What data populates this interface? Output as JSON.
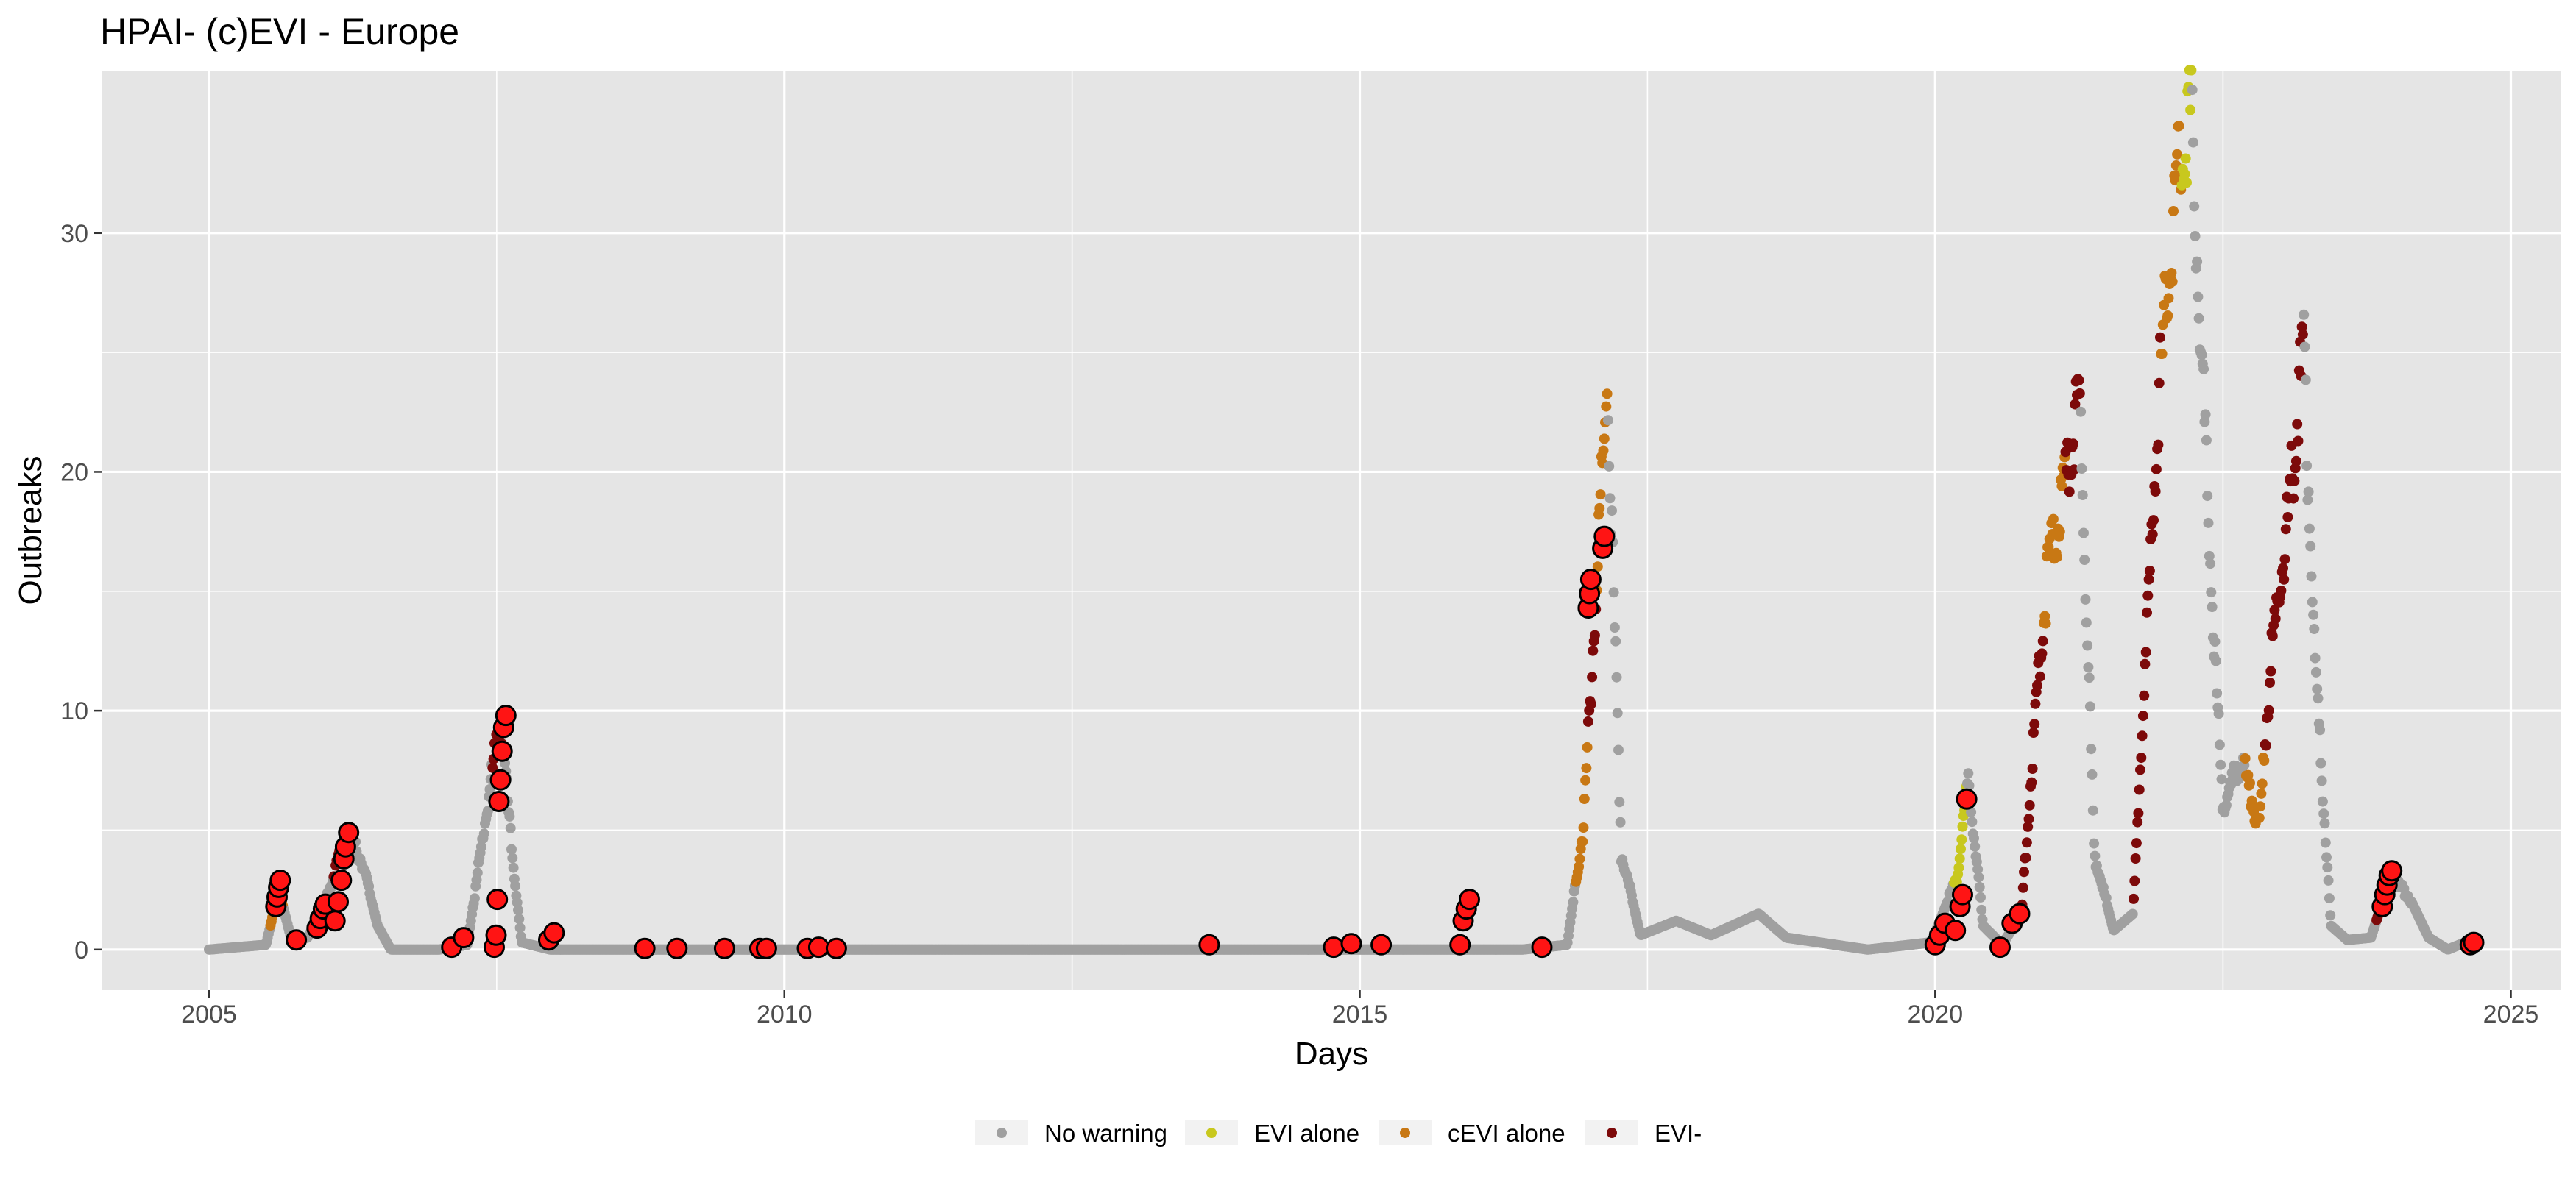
{
  "chart_data": {
    "type": "scatter",
    "title": "HPAI- (c)EVI - Europe",
    "xlabel": "Days",
    "ylabel": "Outbreaks",
    "x_ticks": [
      "2005",
      "2010",
      "2015",
      "2020",
      "2025"
    ],
    "y_ticks": [
      "0",
      "10",
      "20",
      "30"
    ],
    "xlim": [
      "2004-01-26",
      "2025-06-10"
    ],
    "ylim": [
      -1.7,
      36.8
    ],
    "grid": true,
    "legend_position": "bottom",
    "colors": {
      "panel": "#e5e5e5",
      "grid": "#ffffff",
      "no_warning": "#a0a0a0",
      "evi_alone": "#c8c81e",
      "cevi_alone": "#c87814",
      "evi_both": "#7d0a0a",
      "outbreak_marker": "#ff1414"
    },
    "legend": [
      {
        "key": "no_warning",
        "label": "No warning"
      },
      {
        "key": "evi_alone",
        "label": "EVI alone"
      },
      {
        "key": "cevi_alone",
        "label": "cEVI alone"
      },
      {
        "key": "evi_both",
        "label": "EVI-"
      }
    ],
    "trend": [
      [
        "2005-01-01",
        0
      ],
      [
        "2005-07-01",
        0.2
      ],
      [
        "2005-08-10",
        2.5
      ],
      [
        "2005-09-20",
        0.4
      ],
      [
        "2005-11-10",
        0.5
      ],
      [
        "2006-01-01",
        1.8
      ],
      [
        "2006-03-15",
        4.9
      ],
      [
        "2006-05-01",
        3.7
      ],
      [
        "2006-06-20",
        1.0
      ],
      [
        "2006-08-01",
        0
      ],
      [
        "2007-01-01",
        0
      ],
      [
        "2007-04-01",
        0.2
      ],
      [
        "2007-07-15",
        9.8
      ],
      [
        "2007-08-20",
        4.1
      ],
      [
        "2007-09-20",
        0.3
      ],
      [
        "2007-12-20",
        0
      ],
      [
        "2016-06-01",
        0
      ],
      [
        "2016-10-20",
        0.2
      ],
      [
        "2016-12-10",
        5.0
      ],
      [
        "2017-01-20",
        15.0
      ],
      [
        "2017-02-25",
        23.8
      ],
      [
        "2017-04-10",
        4.0
      ],
      [
        "2017-06-10",
        0.6
      ],
      [
        "2017-10-01",
        1.2
      ],
      [
        "2018-01-20",
        0.6
      ],
      [
        "2018-06-20",
        1.5
      ],
      [
        "2018-09-15",
        0.5
      ],
      [
        "2019-06-01",
        0
      ],
      [
        "2019-12-20",
        0.3
      ],
      [
        "2020-03-10",
        3.0
      ],
      [
        "2020-04-15",
        7.2
      ],
      [
        "2020-06-01",
        1.0
      ],
      [
        "2020-08-01",
        0.2
      ],
      [
        "2020-10-01",
        1.5
      ],
      [
        "2020-11-15",
        10.0
      ],
      [
        "2020-12-25",
        16.0
      ],
      [
        "2021-02-10",
        19.0
      ],
      [
        "2021-04-05",
        23.0
      ],
      [
        "2021-05-20",
        4.0
      ],
      [
        "2021-07-20",
        0.8
      ],
      [
        "2021-09-20",
        1.5
      ],
      [
        "2021-12-10",
        23.0
      ],
      [
        "2022-02-10",
        33.0
      ],
      [
        "2022-03-25",
        35.0
      ],
      [
        "2022-05-20",
        17.0
      ],
      [
        "2022-07-01",
        6.0
      ],
      [
        "2022-09-01",
        8.0
      ],
      [
        "2022-10-25",
        5.0
      ],
      [
        "2022-12-01",
        12.0
      ],
      [
        "2023-02-01",
        19.0
      ],
      [
        "2023-03-15",
        25.2
      ],
      [
        "2023-04-20",
        12.0
      ],
      [
        "2023-06-10",
        1.0
      ],
      [
        "2023-08-01",
        0.4
      ],
      [
        "2023-10-15",
        0.5
      ],
      [
        "2023-12-15",
        3.0
      ],
      [
        "2024-02-10",
        2.3
      ],
      [
        "2024-04-15",
        0.5
      ],
      [
        "2024-06-15",
        0
      ],
      [
        "2024-09-15",
        0.5
      ]
    ],
    "warning_bands": [
      {
        "from": "2005-07-15",
        "to": "2005-08-25",
        "cat": "cevi_alone"
      },
      {
        "from": "2006-02-01",
        "to": "2006-03-20",
        "cat": "evi_both"
      },
      {
        "from": "2007-06-20",
        "to": "2007-07-20",
        "cat": "evi_both"
      },
      {
        "from": "2016-11-15",
        "to": "2016-12-25",
        "cat": "cevi_alone"
      },
      {
        "from": "2016-12-26",
        "to": "2017-01-20",
        "cat": "evi_both"
      },
      {
        "from": "2017-01-21",
        "to": "2017-02-25",
        "cat": "cevi_alone"
      },
      {
        "from": "2020-03-01",
        "to": "2020-04-10",
        "cat": "evi_alone"
      },
      {
        "from": "2020-09-20",
        "to": "2020-12-10",
        "cat": "evi_both"
      },
      {
        "from": "2020-12-11",
        "to": "2021-02-15",
        "cat": "cevi_alone"
      },
      {
        "from": "2021-02-16",
        "to": "2021-04-05",
        "cat": "evi_both"
      },
      {
        "from": "2021-09-20",
        "to": "2021-12-15",
        "cat": "evi_both"
      },
      {
        "from": "2021-12-16",
        "to": "2022-02-20",
        "cat": "cevi_alone"
      },
      {
        "from": "2022-02-21",
        "to": "2022-03-25",
        "cat": "evi_alone"
      },
      {
        "from": "2022-09-10",
        "to": "2022-11-10",
        "cat": "cevi_alone"
      },
      {
        "from": "2022-11-11",
        "to": "2023-03-15",
        "cat": "evi_both"
      },
      {
        "from": "2023-11-01",
        "to": "2023-12-15",
        "cat": "evi_both"
      }
    ],
    "outbreak_points": [
      [
        "2005-08-01",
        1.8
      ],
      [
        "2005-08-05",
        2.2
      ],
      [
        "2005-08-10",
        2.6
      ],
      [
        "2005-08-15",
        2.9
      ],
      [
        "2005-10-05",
        0.4
      ],
      [
        "2005-12-10",
        0.9
      ],
      [
        "2005-12-20",
        1.3
      ],
      [
        "2005-12-30",
        1.7
      ],
      [
        "2006-01-05",
        1.9
      ],
      [
        "2006-02-05",
        1.2
      ],
      [
        "2006-02-15",
        2.0
      ],
      [
        "2006-02-25",
        2.9
      ],
      [
        "2006-03-05",
        3.8
      ],
      [
        "2006-03-10",
        4.3
      ],
      [
        "2006-03-20",
        4.9
      ],
      [
        "2007-02-10",
        0.1
      ],
      [
        "2007-03-20",
        0.5
      ],
      [
        "2007-06-25",
        0.1
      ],
      [
        "2007-07-01",
        0.6
      ],
      [
        "2007-07-05",
        2.1
      ],
      [
        "2007-07-10",
        6.2
      ],
      [
        "2007-07-15",
        7.1
      ],
      [
        "2007-07-20",
        8.3
      ],
      [
        "2007-07-25",
        9.3
      ],
      [
        "2007-08-01",
        9.8
      ],
      [
        "2007-12-15",
        0.4
      ],
      [
        "2008-01-01",
        0.7
      ],
      [
        "2008-10-15",
        0.05
      ],
      [
        "2009-01-25",
        0.05
      ],
      [
        "2009-06-25",
        0.05
      ],
      [
        "2009-10-15",
        0.05
      ],
      [
        "2009-11-05",
        0.05
      ],
      [
        "2010-03-15",
        0.05
      ],
      [
        "2010-04-20",
        0.1
      ],
      [
        "2010-06-15",
        0.05
      ],
      [
        "2013-09-10",
        0.2
      ],
      [
        "2014-10-10",
        0.1
      ],
      [
        "2014-12-05",
        0.25
      ],
      [
        "2015-03-10",
        0.2
      ],
      [
        "2015-11-15",
        0.2
      ],
      [
        "2015-11-25",
        1.2
      ],
      [
        "2015-12-05",
        1.7
      ],
      [
        "2015-12-15",
        2.1
      ],
      [
        "2016-08-01",
        0.1
      ],
      [
        "2016-12-26",
        14.3
      ],
      [
        "2016-12-30",
        14.9
      ],
      [
        "2017-01-03",
        15.5
      ],
      [
        "2017-02-10",
        16.8
      ],
      [
        "2017-02-15",
        17.3
      ],
      [
        "2020-01-01",
        0.2
      ],
      [
        "2020-01-15",
        0.6
      ],
      [
        "2020-02-01",
        1.1
      ],
      [
        "2020-03-05",
        0.8
      ],
      [
        "2020-03-20",
        1.8
      ],
      [
        "2020-03-28",
        2.3
      ],
      [
        "2020-04-10",
        6.3
      ],
      [
        "2020-07-25",
        0.1
      ],
      [
        "2020-09-01",
        1.1
      ],
      [
        "2020-09-25",
        1.5
      ],
      [
        "2023-11-20",
        1.8
      ],
      [
        "2023-11-28",
        2.3
      ],
      [
        "2023-12-05",
        2.7
      ],
      [
        "2023-12-12",
        3.1
      ],
      [
        "2023-12-20",
        3.3
      ],
      [
        "2024-08-25",
        0.2
      ],
      [
        "2024-09-05",
        0.3
      ]
    ]
  }
}
